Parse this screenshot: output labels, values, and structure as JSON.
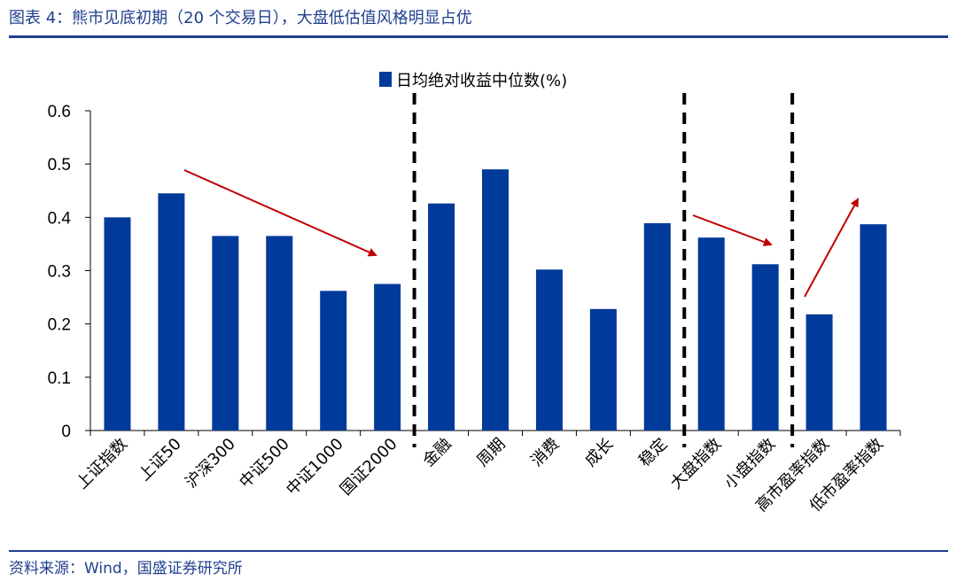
{
  "header": {
    "title": "图表 4：熊市见底初期（20 个交易日），大盘低估值风格明显占优"
  },
  "footer": {
    "source": "资料来源：Wind，国盛证券研究所"
  },
  "colors": {
    "accent": "#1f3f8f",
    "bar": "#003a9a",
    "arrow": "#c00000",
    "divider": "#000000"
  },
  "chart_data": {
    "type": "bar",
    "categories": [
      "上证指数",
      "上证50",
      "沪深300",
      "中证500",
      "中证1000",
      "国证2000",
      "金融",
      "周期",
      "消费",
      "成长",
      "稳定",
      "大盘指数",
      "小盘指数",
      "高市盈率指数",
      "低市盈率指数"
    ],
    "series": [
      {
        "name": "日均绝对收益中位数(%)",
        "values": [
          0.4,
          0.445,
          0.365,
          0.365,
          0.262,
          0.275,
          0.426,
          0.49,
          0.302,
          0.228,
          0.389,
          0.362,
          0.312,
          0.218,
          0.387
        ]
      }
    ],
    "ylim": [
      0,
      0.6
    ],
    "yticks": [
      "0",
      "0.1",
      "0.2",
      "0.3",
      "0.4",
      "0.5",
      "0.6"
    ],
    "grid": false,
    "legend_position": "top-center",
    "group_dividers_after": [
      "国证2000",
      "稳定",
      "小盘指数"
    ]
  }
}
